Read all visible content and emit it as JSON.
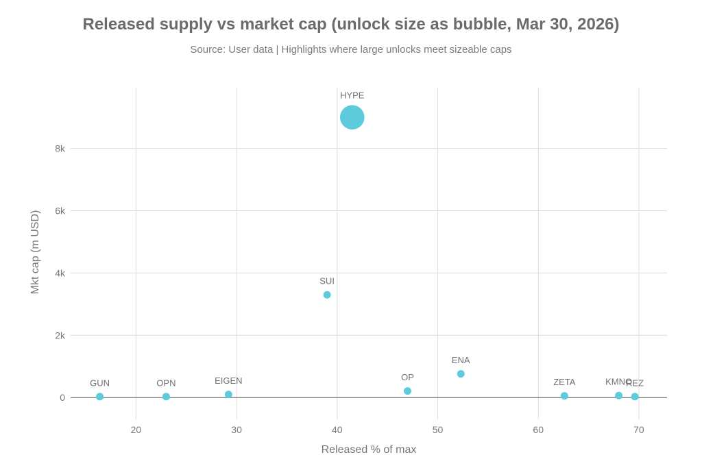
{
  "chart_data": {
    "type": "scatter",
    "title": "Released supply vs market cap (unlock size as bubble, Mar 30, 2026)",
    "subtitle": "Source: User data | Highlights where large unlocks meet sizeable caps",
    "xlabel": "Released % of max",
    "ylabel": "Mkt cap (m USD)",
    "xlim": [
      13.5,
      72.8
    ],
    "ylim": [
      -700,
      9950
    ],
    "xticks": [
      20,
      30,
      40,
      50,
      60,
      70
    ],
    "xtick_labels": [
      "20",
      "30",
      "40",
      "50",
      "60",
      "70"
    ],
    "yticks": [
      0,
      2000,
      4000,
      6000,
      8000
    ],
    "ytick_labels": [
      "0",
      "2k",
      "4k",
      "6k",
      "8k"
    ],
    "bubble_color": "#5ecbdc",
    "points": [
      {
        "label": "GUN",
        "x": 16.4,
        "y": 30,
        "bubble": 1
      },
      {
        "label": "OPN",
        "x": 23.0,
        "y": 30,
        "bubble": 1
      },
      {
        "label": "EIGEN",
        "x": 29.2,
        "y": 100,
        "bubble": 1
      },
      {
        "label": "SUI",
        "x": 39.0,
        "y": 3300,
        "bubble": 1
      },
      {
        "label": "HYPE",
        "x": 41.5,
        "y": 9000,
        "bubble": 12
      },
      {
        "label": "OP",
        "x": 47.0,
        "y": 210,
        "bubble": 1
      },
      {
        "label": "ENA",
        "x": 52.3,
        "y": 760,
        "bubble": 1
      },
      {
        "label": "ZETA",
        "x": 62.6,
        "y": 55,
        "bubble": 1
      },
      {
        "label": "KMNO",
        "x": 68.0,
        "y": 65,
        "bubble": 1
      },
      {
        "label": "REZ",
        "x": 69.6,
        "y": 30,
        "bubble": 1
      }
    ]
  }
}
